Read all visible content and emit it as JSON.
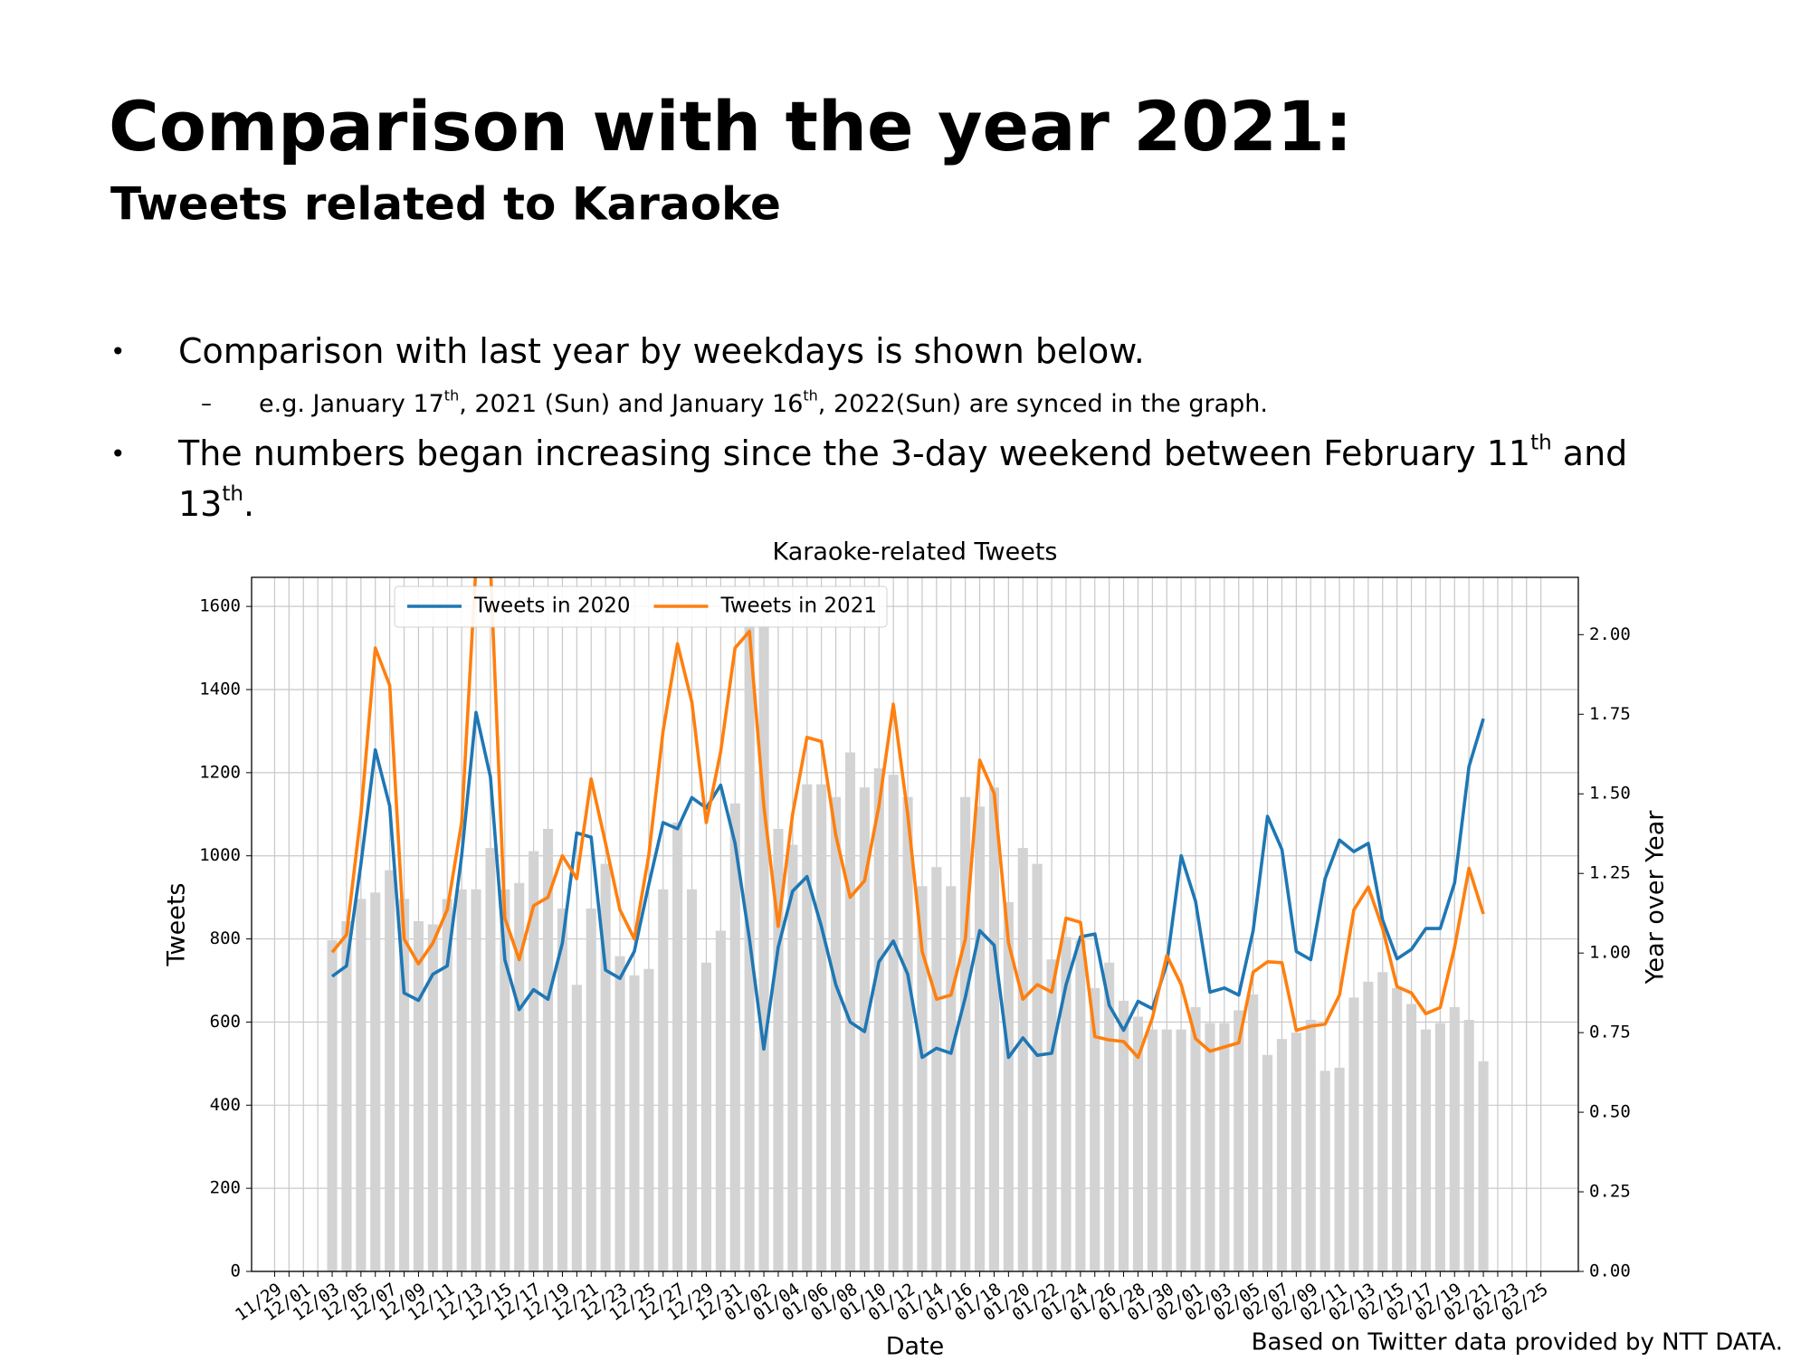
{
  "header": {
    "title": "Comparison with the year 2021:",
    "subtitle": "Tweets related to Karaoke"
  },
  "bullets": [
    {
      "text": [
        "Comparison with last year by weekdays is shown below."
      ],
      "sub": [
        [
          "e.g. January 17",
          "th",
          ", 2021 (Sun) and January 16",
          "th",
          ", 2022(Sun) are synced in the graph."
        ]
      ]
    },
    {
      "text": [
        "The numbers began increasing since the 3-day weekend between February 11",
        "th",
        " and 13",
        "th",
        "."
      ]
    }
  ],
  "footer": "Based on Twitter data provided by NTT DATA.",
  "chart_data": {
    "type": "line",
    "title": "Karaoke-related Tweets",
    "xlabel": "Date",
    "ylabel": "Tweets",
    "y2label": "Year over Year",
    "categories": [
      "11/29",
      null,
      "12/01",
      null,
      "12/03",
      null,
      "12/05",
      null,
      "12/07",
      null,
      "12/09",
      null,
      "12/11",
      null,
      "12/13",
      null,
      "12/15",
      null,
      "12/17",
      null,
      "12/19",
      null,
      "12/21",
      null,
      "12/23",
      null,
      "12/25",
      null,
      "12/27",
      null,
      "12/29",
      null,
      "12/31",
      null,
      "01/02",
      null,
      "01/04",
      null,
      "01/06",
      null,
      "01/08",
      null,
      "01/10",
      null,
      "01/12",
      null,
      "01/14",
      null,
      "01/16",
      null,
      "01/18",
      null,
      "01/20",
      null,
      "01/22",
      null,
      "01/24",
      null,
      "01/26",
      null,
      "01/28",
      null,
      "01/30",
      null,
      "02/01",
      null,
      "02/03",
      null,
      "02/05",
      null,
      "02/07",
      null,
      "02/09",
      null,
      "02/11",
      null,
      "02/13",
      null,
      "02/15",
      null,
      "02/17",
      null,
      "02/19",
      null,
      "02/21",
      null,
      "02/23",
      null,
      "02/25"
    ],
    "series": [
      {
        "name": "Tweets in 2020",
        "color": "#1f77b4",
        "values": [
          null,
          null,
          null,
          null,
          710,
          735,
          980,
          1255,
          1120,
          670,
          652,
          715,
          735,
          1000,
          1345,
          1190,
          750,
          630,
          678,
          655,
          790,
          1055,
          1045,
          725,
          705,
          770,
          930,
          1080,
          1065,
          1140,
          1115,
          1170,
          1030,
          800,
          535,
          780,
          915,
          950,
          830,
          690,
          600,
          577,
          745,
          795,
          715,
          515,
          537,
          525,
          660,
          820,
          785,
          515,
          562,
          520,
          525,
          690,
          805,
          812,
          640,
          580,
          650,
          632,
          740,
          1000,
          890,
          672,
          682,
          665,
          820,
          1095,
          1015,
          770,
          750,
          945,
          1038,
          1010,
          1030,
          845,
          752,
          775,
          825,
          825,
          935,
          1215,
          1330,
          null,
          null,
          null,
          null
        ]
      },
      {
        "name": "Tweets in 2021",
        "color": "#ff7f0e",
        "values": [
          null,
          null,
          null,
          null,
          768,
          810,
          1100,
          1500,
          1410,
          800,
          740,
          790,
          870,
          1080,
          1700,
          1700,
          850,
          750,
          880,
          900,
          1000,
          945,
          1185,
          1030,
          870,
          800,
          1000,
          1300,
          1510,
          1370,
          1080,
          1250,
          1500,
          1540,
          1120,
          830,
          1100,
          1285,
          1275,
          1050,
          900,
          940,
          1120,
          1365,
          1100,
          770,
          655,
          665,
          800,
          1230,
          1150,
          790,
          655,
          690,
          672,
          850,
          840,
          565,
          557,
          553,
          515,
          610,
          760,
          690,
          560,
          530,
          540,
          550,
          720,
          745,
          743,
          580,
          590,
          595,
          665,
          870,
          925,
          825,
          685,
          670,
          620,
          635,
          780,
          970,
          860,
          null,
          null,
          null,
          null
        ]
      }
    ],
    "bars": {
      "color": "#d3d3d3",
      "axis": "y2",
      "values": [
        null,
        null,
        null,
        null,
        1.04,
        1.1,
        1.17,
        1.19,
        1.26,
        1.17,
        1.1,
        1.09,
        1.17,
        1.2,
        1.2,
        1.33,
        1.2,
        1.22,
        1.32,
        1.39,
        1.14,
        0.9,
        1.14,
        1.28,
        0.99,
        0.93,
        0.95,
        1.2,
        1.41,
        1.2,
        0.97,
        1.07,
        1.47,
        2.03,
        2.03,
        1.39,
        1.34,
        1.53,
        1.53,
        1.49,
        1.63,
        1.52,
        1.58,
        1.56,
        1.49,
        1.21,
        1.27,
        1.21,
        1.49,
        1.46,
        1.52,
        1.16,
        1.33,
        1.28,
        0.98,
        1.05,
        1.04,
        0.89,
        0.97,
        0.85,
        0.8,
        0.76,
        0.76,
        0.76,
        0.83,
        0.78,
        0.78,
        0.82,
        0.87,
        0.68,
        0.73,
        0.75,
        0.79,
        0.63,
        0.64,
        0.86,
        0.91,
        0.94,
        0.89,
        0.84,
        0.76,
        0.78,
        0.83,
        0.79,
        0.66,
        null,
        null,
        null,
        null
      ]
    },
    "ylim": [
      0,
      1670
    ],
    "yticks": [
      0,
      200,
      400,
      600,
      800,
      1000,
      1200,
      1400,
      1600
    ],
    "y2lim": [
      0,
      2.18
    ],
    "y2ticks": [
      {
        "value": 0,
        "label": "0.00"
      },
      0.25,
      {
        "value": 0.5,
        "label": "0.50"
      },
      0.75,
      {
        "value": 1,
        "label": "1.00"
      },
      1.25,
      {
        "value": 1.5,
        "label": "1.50"
      },
      1.75,
      {
        "value": 2,
        "label": "2.00"
      }
    ],
    "grid": true
  }
}
